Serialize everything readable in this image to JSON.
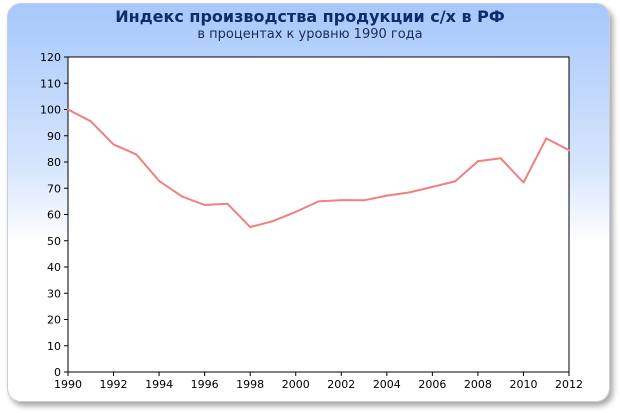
{
  "chart_data": {
    "type": "line",
    "title": "Индекс производства продукции с/х в РФ",
    "subtitle": "в процентах к уровню 1990 года",
    "xlabel": "",
    "ylabel": "",
    "xlim": [
      1990,
      2012
    ],
    "ylim": [
      0,
      120
    ],
    "grid": false,
    "x_ticks": [
      "1990",
      "1992",
      "1994",
      "1996",
      "1998",
      "2000",
      "2002",
      "2004",
      "2006",
      "2008",
      "2010",
      "2012"
    ],
    "y_ticks": [
      "0",
      "10",
      "20",
      "30",
      "40",
      "50",
      "60",
      "70",
      "80",
      "90",
      "100",
      "110",
      "120"
    ],
    "series": [
      {
        "color": "#f08080",
        "x": [
          1990,
          1991,
          1992,
          1993,
          1994,
          1995,
          1996,
          1997,
          1998,
          1999,
          2000,
          2001,
          2002,
          2003,
          2004,
          2005,
          2006,
          2007,
          2008,
          2009,
          2010,
          2011,
          2012
        ],
        "y": [
          100,
          95.5,
          86.7,
          82.9,
          72.8,
          66.9,
          63.6,
          64.1,
          55.2,
          57.5,
          61.0,
          65.0,
          65.5,
          65.4,
          67.2,
          68.4,
          70.5,
          72.6,
          80.3,
          81.4,
          72.2,
          89.0,
          84.5
        ]
      }
    ]
  }
}
